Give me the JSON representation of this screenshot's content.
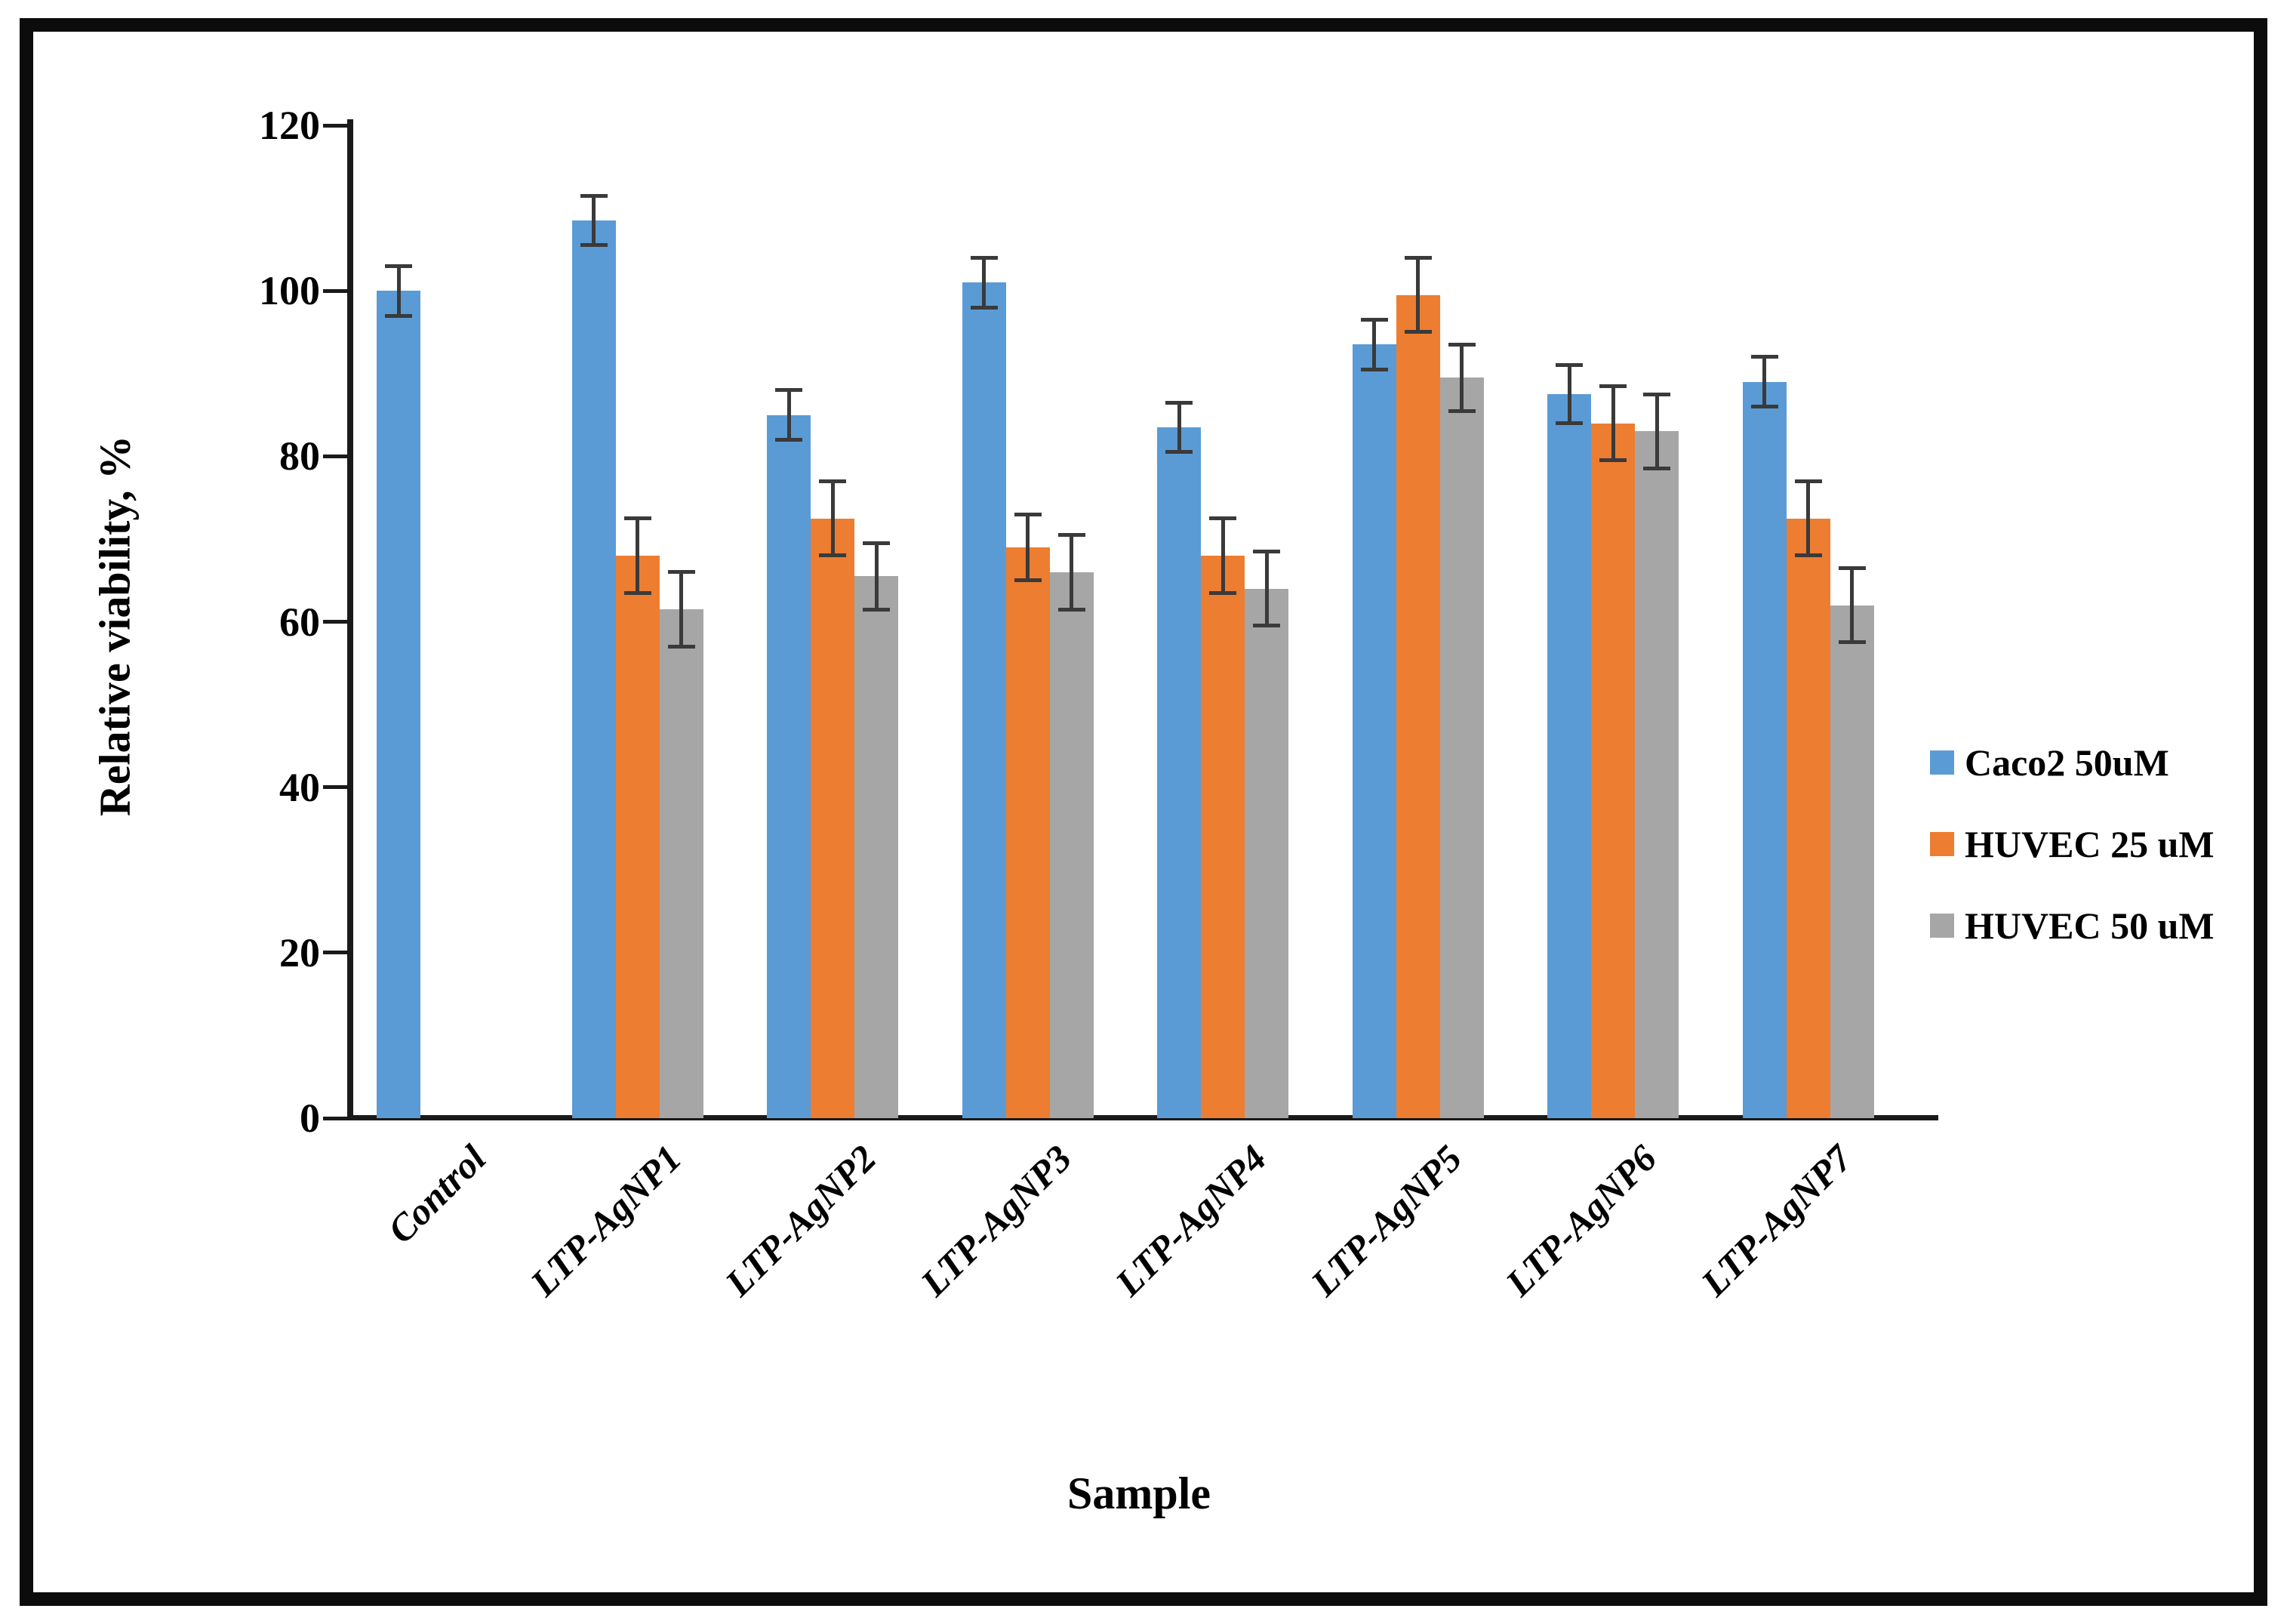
{
  "figure": {
    "border_color": "#0c0c0c",
    "background": "#ffffff"
  },
  "chart_data": {
    "type": "bar",
    "title": "",
    "xlabel": "Sample",
    "ylabel": "Relative viability, %",
    "ylim": [
      0,
      120
    ],
    "yticks": [
      0,
      20,
      40,
      60,
      80,
      100,
      120
    ],
    "grid": false,
    "legend_position": "right",
    "error_bar_color": "#3a3a3a",
    "categories": [
      "Control",
      "LTP-AgNP1",
      "LTP-AgNP2",
      "LTP-AgNP3",
      "LTP-AgNP4",
      "LTP-AgNP5",
      "LTP-AgNP6",
      "LTP-AgNP7"
    ],
    "series": [
      {
        "name": "Caco2 50uM",
        "color": "#5B9BD5",
        "values": [
          100,
          108.5,
          85,
          101,
          83.5,
          93.5,
          87.5,
          89
        ],
        "errors": [
          3,
          3,
          3,
          3,
          3,
          3,
          3.5,
          3
        ]
      },
      {
        "name": "HUVEC 25 uM",
        "color": "#ED7D31",
        "values": [
          null,
          68,
          72.5,
          69,
          68,
          99.5,
          84,
          72.5
        ],
        "errors": [
          null,
          4.5,
          4.5,
          4,
          4.5,
          4.5,
          4.5,
          4.5
        ]
      },
      {
        "name": "HUVEC 50 uM",
        "color": "#A6A6A6",
        "values": [
          null,
          61.5,
          65.5,
          66,
          64,
          89.5,
          83,
          62
        ],
        "errors": [
          null,
          4.5,
          4,
          4.5,
          4.5,
          4,
          4.5,
          4.5
        ]
      }
    ]
  }
}
